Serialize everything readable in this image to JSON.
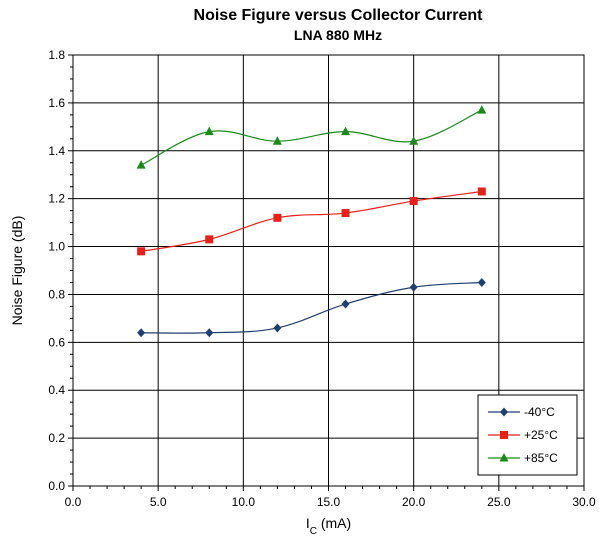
{
  "chart_data": {
    "type": "line",
    "title": "Noise Figure versus Collector Current",
    "subtitle": "LNA 880 MHz",
    "xlabel": "I",
    "xlabel_sub": "C",
    "xlabel_unit": " (mA)",
    "ylabel": "Noise Figure (dB)",
    "xlim": [
      0,
      30
    ],
    "ylim": [
      0,
      1.8
    ],
    "x_ticks": [
      "0.0",
      "5.0",
      "10.0",
      "15.0",
      "20.0",
      "25.0",
      "30.0"
    ],
    "y_ticks": [
      "0.0",
      "0.2",
      "0.4",
      "0.6",
      "0.8",
      "1.0",
      "1.2",
      "1.4",
      "1.6",
      "1.8"
    ],
    "grid": true,
    "legend_position": "bottom-right",
    "series": [
      {
        "name": "-40°C",
        "color": "#1f3f6e",
        "marker": "diamond",
        "x": [
          4,
          8,
          12,
          16,
          20,
          24
        ],
        "values": [
          0.64,
          0.64,
          0.66,
          0.76,
          0.83,
          0.85
        ]
      },
      {
        "name": "+25°C",
        "color": "#e8201a",
        "marker": "square",
        "x": [
          4,
          8,
          12,
          16,
          20,
          24
        ],
        "values": [
          0.98,
          1.03,
          1.12,
          1.14,
          1.19,
          1.23
        ]
      },
      {
        "name": "+85°C",
        "color": "#1a8a1a",
        "marker": "triangle",
        "x": [
          4,
          8,
          12,
          16,
          20,
          24
        ],
        "values": [
          1.34,
          1.48,
          1.44,
          1.48,
          1.44,
          1.57
        ]
      }
    ]
  }
}
